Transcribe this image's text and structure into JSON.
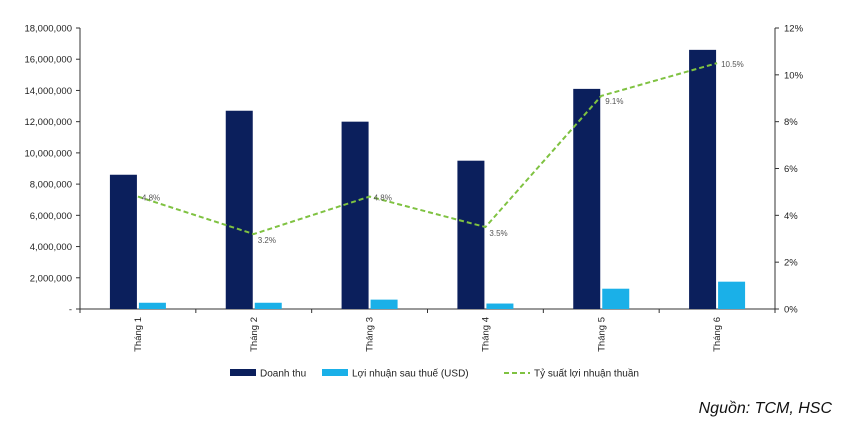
{
  "chart_data": {
    "type": "bar",
    "categories": [
      "Tháng 1",
      "Tháng 2",
      "Tháng 3",
      "Tháng 4",
      "Tháng 5",
      "Tháng 6"
    ],
    "series": [
      {
        "name": "Doanh thu",
        "type": "bar",
        "axis": "left",
        "color": "#0b1f5c",
        "values": [
          8600000,
          12700000,
          12000000,
          9500000,
          14100000,
          16600000
        ]
      },
      {
        "name": "Lợi nhuận sau thuế (USD)",
        "type": "bar",
        "axis": "left",
        "color": "#1ab0e8",
        "values": [
          400000,
          400000,
          600000,
          350000,
          1300000,
          1750000
        ]
      },
      {
        "name": "Tỷ suất lợi nhuận thuần",
        "type": "line",
        "axis": "right",
        "color": "#7fc241",
        "values": [
          4.8,
          3.2,
          4.8,
          3.5,
          9.1,
          10.5
        ],
        "labels": [
          "4.8%",
          "3.2%",
          "4.8%",
          "3.5%",
          "9.1%",
          "10.5%"
        ]
      }
    ],
    "y_left": {
      "range": [
        0,
        18000000
      ],
      "ticks": [
        "-",
        "2,000,000",
        "4,000,000",
        "6,000,000",
        "8,000,000",
        "10,000,000",
        "12,000,000",
        "14,000,000",
        "16,000,000",
        "18,000,000"
      ]
    },
    "y_right": {
      "range": [
        0,
        12
      ],
      "ticks": [
        "0%",
        "2%",
        "4%",
        "6%",
        "8%",
        "10%",
        "12%"
      ]
    },
    "grid": false,
    "legend_position": "bottom"
  },
  "source": "Nguồn: TCM, HSC"
}
